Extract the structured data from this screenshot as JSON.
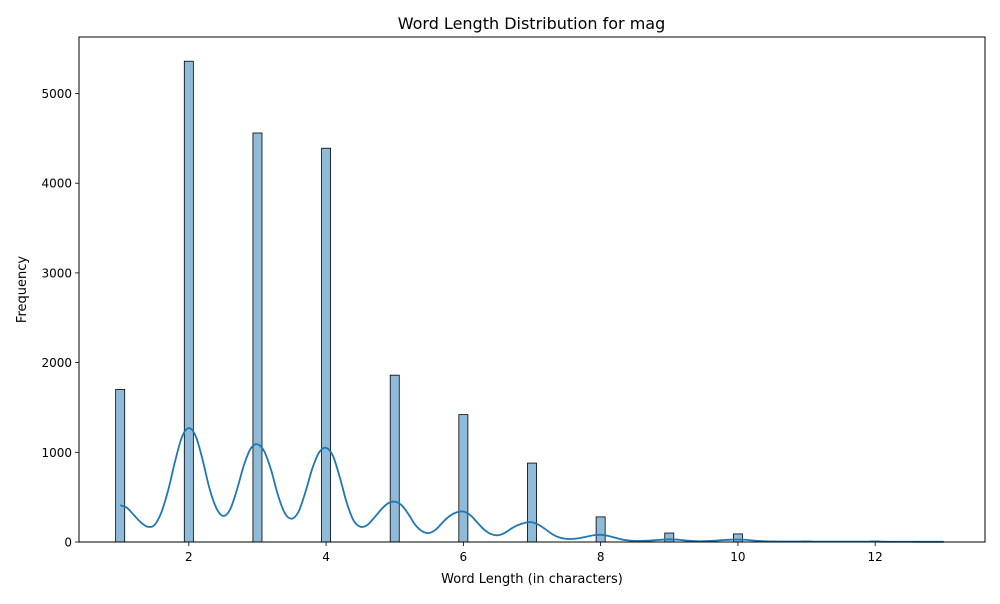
{
  "chart_data": {
    "type": "bar",
    "title": "Word Length Distribution for mag",
    "xlabel": "Word Length (in characters)",
    "ylabel": "Frequency",
    "xlim": [
      0.4,
      13.6
    ],
    "ylim": [
      0,
      5630
    ],
    "xticks": [
      2,
      4,
      6,
      8,
      10,
      12
    ],
    "yticks": [
      0,
      1000,
      2000,
      3000,
      4000,
      5000
    ],
    "grid": false,
    "legend": "none",
    "bar_color": "#1f77b4",
    "bar_alpha": 0.5,
    "bar_edge_color": "#000000",
    "kde_color": "#1f77b4",
    "bars": [
      {
        "x": 1,
        "value": 1700
      },
      {
        "x": 2,
        "value": 5360
      },
      {
        "x": 3,
        "value": 4560
      },
      {
        "x": 4,
        "value": 4390
      },
      {
        "x": 5,
        "value": 1860
      },
      {
        "x": 6,
        "value": 1420
      },
      {
        "x": 7,
        "value": 880
      },
      {
        "x": 8,
        "value": 280
      },
      {
        "x": 9,
        "value": 100
      },
      {
        "x": 10,
        "value": 90
      },
      {
        "x": 11,
        "value": 10
      },
      {
        "x": 12,
        "value": 10
      }
    ],
    "kde": [
      {
        "x": 1.0,
        "y": 410
      },
      {
        "x": 1.1,
        "y": 380
      },
      {
        "x": 1.2,
        "y": 300
      },
      {
        "x": 1.3,
        "y": 220
      },
      {
        "x": 1.4,
        "y": 170
      },
      {
        "x": 1.5,
        "y": 190
      },
      {
        "x": 1.6,
        "y": 330
      },
      {
        "x": 1.7,
        "y": 580
      },
      {
        "x": 1.8,
        "y": 900
      },
      {
        "x": 1.9,
        "y": 1170
      },
      {
        "x": 2.0,
        "y": 1270
      },
      {
        "x": 2.1,
        "y": 1180
      },
      {
        "x": 2.2,
        "y": 920
      },
      {
        "x": 2.3,
        "y": 600
      },
      {
        "x": 2.4,
        "y": 380
      },
      {
        "x": 2.5,
        "y": 290
      },
      {
        "x": 2.6,
        "y": 360
      },
      {
        "x": 2.7,
        "y": 580
      },
      {
        "x": 2.8,
        "y": 850
      },
      {
        "x": 2.9,
        "y": 1040
      },
      {
        "x": 3.0,
        "y": 1090
      },
      {
        "x": 3.1,
        "y": 1010
      },
      {
        "x": 3.2,
        "y": 800
      },
      {
        "x": 3.3,
        "y": 520
      },
      {
        "x": 3.4,
        "y": 320
      },
      {
        "x": 3.5,
        "y": 260
      },
      {
        "x": 3.6,
        "y": 340
      },
      {
        "x": 3.7,
        "y": 560
      },
      {
        "x": 3.8,
        "y": 820
      },
      {
        "x": 3.9,
        "y": 1000
      },
      {
        "x": 4.0,
        "y": 1050
      },
      {
        "x": 4.1,
        "y": 960
      },
      {
        "x": 4.2,
        "y": 720
      },
      {
        "x": 4.3,
        "y": 440
      },
      {
        "x": 4.4,
        "y": 240
      },
      {
        "x": 4.5,
        "y": 170
      },
      {
        "x": 4.6,
        "y": 190
      },
      {
        "x": 4.7,
        "y": 270
      },
      {
        "x": 4.8,
        "y": 360
      },
      {
        "x": 4.9,
        "y": 430
      },
      {
        "x": 5.0,
        "y": 450
      },
      {
        "x": 5.1,
        "y": 410
      },
      {
        "x": 5.2,
        "y": 310
      },
      {
        "x": 5.3,
        "y": 190
      },
      {
        "x": 5.4,
        "y": 120
      },
      {
        "x": 5.5,
        "y": 100
      },
      {
        "x": 5.6,
        "y": 140
      },
      {
        "x": 5.7,
        "y": 220
      },
      {
        "x": 5.8,
        "y": 290
      },
      {
        "x": 5.9,
        "y": 330
      },
      {
        "x": 6.0,
        "y": 340
      },
      {
        "x": 6.1,
        "y": 300
      },
      {
        "x": 6.2,
        "y": 220
      },
      {
        "x": 6.3,
        "y": 140
      },
      {
        "x": 6.4,
        "y": 90
      },
      {
        "x": 6.5,
        "y": 75
      },
      {
        "x": 6.6,
        "y": 100
      },
      {
        "x": 6.7,
        "y": 150
      },
      {
        "x": 6.8,
        "y": 190
      },
      {
        "x": 6.9,
        "y": 215
      },
      {
        "x": 7.0,
        "y": 220
      },
      {
        "x": 7.1,
        "y": 190
      },
      {
        "x": 7.2,
        "y": 140
      },
      {
        "x": 7.3,
        "y": 85
      },
      {
        "x": 7.4,
        "y": 50
      },
      {
        "x": 7.5,
        "y": 35
      },
      {
        "x": 7.6,
        "y": 35
      },
      {
        "x": 7.7,
        "y": 45
      },
      {
        "x": 7.8,
        "y": 60
      },
      {
        "x": 7.9,
        "y": 75
      },
      {
        "x": 8.0,
        "y": 80
      },
      {
        "x": 8.1,
        "y": 70
      },
      {
        "x": 8.2,
        "y": 50
      },
      {
        "x": 8.3,
        "y": 30
      },
      {
        "x": 8.4,
        "y": 18
      },
      {
        "x": 8.5,
        "y": 12
      },
      {
        "x": 8.6,
        "y": 12
      },
      {
        "x": 8.7,
        "y": 15
      },
      {
        "x": 8.8,
        "y": 20
      },
      {
        "x": 8.9,
        "y": 26
      },
      {
        "x": 9.0,
        "y": 30
      },
      {
        "x": 9.1,
        "y": 27
      },
      {
        "x": 9.2,
        "y": 20
      },
      {
        "x": 9.3,
        "y": 13
      },
      {
        "x": 9.4,
        "y": 9
      },
      {
        "x": 9.5,
        "y": 9
      },
      {
        "x": 9.6,
        "y": 12
      },
      {
        "x": 9.7,
        "y": 17
      },
      {
        "x": 9.8,
        "y": 22
      },
      {
        "x": 9.9,
        "y": 26
      },
      {
        "x": 10.0,
        "y": 28
      },
      {
        "x": 10.1,
        "y": 25
      },
      {
        "x": 10.2,
        "y": 18
      },
      {
        "x": 10.3,
        "y": 12
      },
      {
        "x": 10.4,
        "y": 8
      },
      {
        "x": 10.5,
        "y": 6
      },
      {
        "x": 10.6,
        "y": 5
      },
      {
        "x": 10.7,
        "y": 5
      },
      {
        "x": 10.8,
        "y": 5
      },
      {
        "x": 10.9,
        "y": 5
      },
      {
        "x": 11.0,
        "y": 5
      },
      {
        "x": 11.2,
        "y": 4
      },
      {
        "x": 11.4,
        "y": 4
      },
      {
        "x": 11.6,
        "y": 4
      },
      {
        "x": 11.8,
        "y": 4
      },
      {
        "x": 12.0,
        "y": 4
      },
      {
        "x": 12.2,
        "y": 3
      },
      {
        "x": 12.4,
        "y": 3
      },
      {
        "x": 12.6,
        "y": 2
      },
      {
        "x": 12.8,
        "y": 2
      },
      {
        "x": 13.0,
        "y": 2
      }
    ]
  }
}
